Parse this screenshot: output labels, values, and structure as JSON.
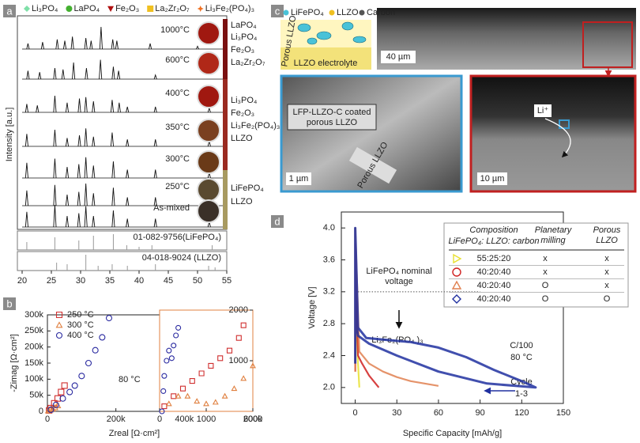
{
  "panel_labels": [
    "a",
    "b",
    "c",
    "d"
  ],
  "chart_data": [
    {
      "type": "xrd",
      "ylabel": "Intensity [a.u.]",
      "xlim": [
        20,
        55
      ],
      "xticks": [
        20,
        25,
        30,
        35,
        40,
        45,
        50,
        55
      ],
      "legend": [
        {
          "name": "Li₃PO₄",
          "color": "#7fe0a8",
          "marker": "diamond"
        },
        {
          "name": "LaPO₄",
          "color": "#44b030",
          "marker": "circle"
        },
        {
          "name": "Fe₂O₃",
          "color": "#b01010",
          "marker": "triangle-down"
        },
        {
          "name": "La₂Zr₂O₇",
          "color": "#f0c020",
          "marker": "square"
        },
        {
          "name": "Li₃Fe₂(PO₄)₃",
          "color": "#f07020",
          "marker": "star"
        }
      ],
      "series": [
        {
          "name": "1000°C",
          "x": [
            21.0,
            23.5,
            26.0,
            27.3,
            28.6,
            30.9,
            31.8,
            33.5,
            35.5,
            36.2,
            41.9,
            50.0
          ],
          "values": [
            0.2,
            0.25,
            0.35,
            0.3,
            0.45,
            0.4,
            0.3,
            0.8,
            0.35,
            0.3,
            0.2,
            0.1
          ]
        },
        {
          "name": "600°C",
          "x": [
            21.0,
            23.0,
            25.6,
            27.0,
            28.8,
            31.0,
            33.4,
            35.6,
            36.5,
            42.8
          ],
          "values": [
            0.3,
            0.25,
            0.4,
            0.35,
            0.6,
            0.4,
            0.7,
            0.45,
            0.3,
            0.15
          ]
        },
        {
          "name": "400°C",
          "x": [
            20.8,
            22.6,
            25.6,
            27.7,
            29.8,
            30.9,
            32.2,
            35.4,
            36.6,
            38.0,
            42.8,
            52.0
          ],
          "values": [
            0.3,
            0.25,
            0.6,
            0.35,
            0.5,
            0.55,
            0.4,
            0.45,
            0.35,
            0.2,
            0.2,
            0.15
          ]
        },
        {
          "name": "350°C",
          "x": [
            20.8,
            25.6,
            27.7,
            29.8,
            30.9,
            32.2,
            35.4,
            38.0,
            42.8,
            52.0
          ],
          "values": [
            0.45,
            0.6,
            0.3,
            0.4,
            0.65,
            0.35,
            0.5,
            0.25,
            0.25,
            0.2
          ]
        },
        {
          "name": "300°C",
          "x": [
            20.8,
            25.6,
            27.7,
            29.7,
            30.9,
            32.2,
            35.6,
            38.0,
            42.8,
            52.0
          ],
          "values": [
            0.55,
            0.7,
            0.4,
            0.5,
            0.75,
            0.45,
            0.6,
            0.3,
            0.3,
            0.2
          ]
        },
        {
          "name": "250°C",
          "x": [
            20.8,
            25.6,
            27.7,
            29.7,
            30.9,
            32.2,
            35.6,
            38.0,
            42.8,
            52.0
          ],
          "values": [
            0.55,
            0.75,
            0.4,
            0.5,
            0.8,
            0.45,
            0.65,
            0.3,
            0.3,
            0.2
          ]
        },
        {
          "name": "As-mixed",
          "x": [
            20.8,
            25.6,
            27.7,
            29.7,
            30.9,
            32.2,
            35.6,
            38.0,
            42.8,
            52.0
          ],
          "values": [
            0.55,
            0.8,
            0.4,
            0.5,
            0.75,
            0.4,
            0.6,
            0.3,
            0.3,
            0.2
          ]
        }
      ],
      "references": [
        {
          "name": "01-082-9756(LiFePO₄)",
          "x": [
            20.8,
            25.6,
            29.7,
            32.2,
            35.6,
            37.9,
            40.0,
            42.2,
            52.5
          ],
          "values": [
            0.5,
            0.8,
            0.6,
            0.9,
            1,
            0.3,
            0.2,
            0.3,
            0.3
          ]
        },
        {
          "name": "04-018-9024 (LLZO)",
          "x": [
            25.9,
            27.7,
            30.9,
            33.0,
            35.4,
            38.0,
            42.8,
            51.9,
            53.0
          ],
          "values": [
            0.5,
            0.4,
            1,
            0.3,
            0.4,
            0.3,
            0.4,
            0.3,
            0.2
          ]
        }
      ],
      "phase_groups": [
        {
          "color": "#7a1010",
          "texts": [
            "LaPO₄",
            "Li₃PO₄",
            "Fe₂O₃",
            "La₂Zr₂O₇"
          ]
        },
        {
          "color": "#9a2a20",
          "texts": [
            "Li₃PO₄",
            "Fe₂O₃",
            "Li₃Fe₂(PO₄)₃",
            "LLZO"
          ]
        },
        {
          "color": "#a89a60",
          "texts": [
            "LiFePO₄",
            "LLZO"
          ]
        }
      ]
    },
    {
      "type": "scatter",
      "xlabel": "Zreal [Ω·cm²]",
      "ylabel": "-Zimag [Ω·cm²]",
      "annotation": "80 °C",
      "xlim": [
        0,
        600000
      ],
      "ylim": [
        0,
        300000
      ],
      "xticks": [
        0,
        {
          "value": 200000,
          "label": "200k"
        },
        {
          "value": 400000,
          "label": "400k"
        },
        {
          "value": 600000,
          "label": "600k"
        }
      ],
      "yticks": [
        0,
        {
          "value": 50000,
          "label": "50k"
        },
        {
          "value": 100000,
          "label": "100k"
        },
        {
          "value": 150000,
          "label": "150k"
        },
        {
          "value": 200000,
          "label": "200k"
        },
        {
          "value": 250000,
          "label": "250k"
        },
        {
          "value": 300000,
          "label": "300k"
        }
      ],
      "series": [
        {
          "name": "250 °C",
          "color": "#d03030",
          "marker": "square",
          "x": [
            5000,
            10000,
            20000,
            30000,
            40000,
            50000
          ],
          "values": [
            3000,
            10000,
            25000,
            40000,
            60000,
            80000
          ]
        },
        {
          "name": "300 °C",
          "color": "#e08040",
          "marker": "triangle",
          "x": [
            3000,
            8000,
            15000,
            22000,
            30000
          ],
          "values": [
            2000,
            5000,
            8000,
            12000,
            18000
          ]
        },
        {
          "name": "400 °C",
          "color": "#2a2aa0",
          "marker": "circle",
          "x": [
            10000,
            25000,
            45000,
            65000,
            80000,
            100000,
            120000,
            140000,
            160000,
            180000
          ],
          "values": [
            5000,
            20000,
            40000,
            60000,
            80000,
            110000,
            150000,
            190000,
            230000,
            290000
          ]
        }
      ]
    },
    {
      "type": "scatter",
      "xlim": [
        0,
        2000
      ],
      "ylim": [
        0,
        2000
      ],
      "xticks": [
        0,
        1000,
        2000
      ],
      "yticks": [
        1000,
        2000
      ],
      "series": [
        {
          "color": "#d03030",
          "marker": "square",
          "x": [
            100,
            300,
            500,
            700,
            900,
            1100,
            1300,
            1500,
            1700,
            1800
          ],
          "values": [
            100,
            300,
            450,
            600,
            750,
            900,
            1050,
            1200,
            1450,
            1700
          ]
        },
        {
          "color": "#e08040",
          "marker": "triangle",
          "x": [
            200,
            400,
            600,
            800,
            1000,
            1200,
            1400,
            1600,
            1800,
            2000
          ],
          "values": [
            150,
            300,
            300,
            200,
            150,
            180,
            300,
            450,
            650,
            900
          ]
        },
        {
          "color": "#2a2aa0",
          "marker": "circle",
          "x": [
            50,
            80,
            100,
            150,
            200,
            260,
            300,
            350,
            400
          ],
          "values": [
            0,
            400,
            700,
            1000,
            1200,
            1050,
            1300,
            1500,
            1650
          ]
        }
      ]
    },
    {
      "type": "line",
      "xlabel": "Specific Capacity [mAh/g]",
      "ylabel": "Voltage [V]",
      "xlim": [
        -10,
        150
      ],
      "ylim": [
        1.8,
        4.2
      ],
      "xticks": [
        0,
        30,
        60,
        90,
        120,
        150
      ],
      "yticks": [
        {
          "value": 2,
          "label": "2.0"
        },
        2.4,
        2.8,
        3.2,
        3.6,
        {
          "value": 4,
          "label": "4.0"
        }
      ],
      "reference_line": 3.2,
      "reference_label": [
        "LiFePO₄ nominal",
        "voltage"
      ],
      "annotations": [
        "Li₃Fe₂(PO₄ )₃",
        "C/100",
        "80 °C",
        "Cycle",
        "1-3"
      ],
      "series": [
        {
          "name": "55:25:20",
          "color": "#e8e030",
          "marker": "triangle-right",
          "milling": "x",
          "porous": "x",
          "x": [
            0,
            0,
            1,
            2,
            3
          ],
          "values": [
            2.3,
            4.0,
            2.8,
            2.3,
            2.0
          ]
        },
        {
          "name": "40:20:40",
          "color": "#d02020",
          "marker": "circle",
          "milling": "x",
          "porous": "x",
          "x": [
            0,
            0,
            2,
            5,
            10,
            17
          ],
          "values": [
            2.2,
            3.8,
            2.4,
            2.3,
            2.15,
            2.0
          ]
        },
        {
          "name": "40:20:40",
          "color": "#e08050",
          "marker": "triangle",
          "milling": "O",
          "porous": "x",
          "x": [
            0,
            0,
            3,
            10,
            20,
            30,
            40,
            50,
            60
          ],
          "values": [
            2.2,
            4.0,
            2.45,
            2.3,
            2.2,
            2.13,
            2.08,
            2.05,
            2.02
          ]
        },
        {
          "name": "40:20:40",
          "color": "#2030a0",
          "marker": "diamond",
          "milling": "O",
          "porous": "O",
          "x": [
            0,
            0,
            2,
            8,
            20,
            40,
            60,
            80,
            100,
            120,
            130,
            95,
            60,
            30,
            10,
            2,
            0
          ],
          "values": [
            2.3,
            4.0,
            2.75,
            2.62,
            2.6,
            2.57,
            2.5,
            2.38,
            2.22,
            2.08,
            2.0,
            2.05,
            2.2,
            2.4,
            2.55,
            2.65,
            2.9
          ]
        }
      ],
      "table": {
        "composition": "Composition",
        "composition_sub": "LiFePO₄: LLZO: carbon",
        "milling": [
          "Planetary",
          "milling"
        ],
        "porous": [
          "Porous",
          "LLZO"
        ]
      }
    }
  ],
  "panel_c": {
    "legend": [
      "LiFePO₄",
      "LLZO",
      "Carbon"
    ],
    "schematic_porous": "Porous LLZO",
    "schematic_electrolyte": "LLZO electrolyte",
    "top_scale": "40 µm",
    "left_caption": [
      "LFP-LLZO-C coated",
      "porous LLZO"
    ],
    "left_porous": "Porous LLZO",
    "left_scale": "1 µm",
    "right_ion": "Li⁺",
    "right_scale": "10 µm"
  }
}
